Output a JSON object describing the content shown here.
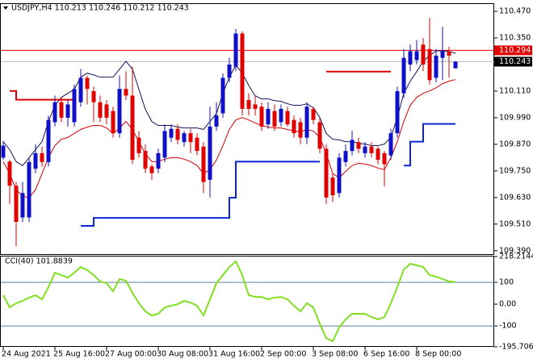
{
  "chart_data": [
    {
      "type": "candlestick",
      "title": "USDJPY,H4  110.213 110.246 110.212 110.243",
      "categories": [
        "24 Aug 2021",
        null,
        null,
        null,
        null,
        null,
        null,
        null,
        "25 Aug 16:00",
        null,
        null,
        null,
        null,
        null,
        null,
        null,
        "27 Aug 00:00",
        null,
        null,
        null,
        null,
        null,
        null,
        null,
        "30 Aug 08:00",
        null,
        null,
        null,
        null,
        null,
        null,
        null,
        "31 Aug 16:00",
        null,
        null,
        null,
        null,
        null,
        null,
        null,
        "2 Sep 00:00",
        null,
        null,
        null,
        null,
        null,
        null,
        null,
        "3 Sep 08:00",
        null,
        null,
        null,
        null,
        null,
        null,
        null,
        "6 Sep 16:00",
        null,
        null,
        null,
        null,
        null,
        null,
        null,
        "8 Sep 00:00",
        null,
        null,
        null,
        null,
        null,
        null
      ],
      "open": [
        109.81,
        109.792,
        109.683,
        109.54,
        109.54,
        109.76,
        109.83,
        109.79,
        109.97,
        110.06,
        109.99,
        109.97,
        110.06,
        110.17,
        110.11,
        110.06,
        110.05,
        110.02,
        109.92,
        110.12,
        110.09,
        109.9,
        109.84,
        109.77,
        109.76,
        109.81,
        109.9,
        109.94,
        109.88,
        109.92,
        109.9,
        109.86,
        109.71,
        109.95,
        110.01,
        110.17,
        110.22,
        110.37,
        110.07,
        110.05,
        110.04,
        109.96,
        110.02,
        109.97,
        110.02,
        109.98,
        109.97,
        109.9,
        110.03,
        109.97,
        109.85,
        109.72,
        109.65,
        109.79,
        109.84,
        109.88,
        109.83,
        109.86,
        109.85,
        109.83,
        109.82,
        109.92,
        110.1,
        110.23,
        110.25,
        110.32,
        110.3,
        110.17,
        110.26,
        110.29,
        110.213
      ],
      "high": [
        109.885,
        109.8,
        109.7,
        109.7,
        109.81,
        109.87,
        109.86,
        110.0,
        110.09,
        110.08,
        110.07,
        110.14,
        110.21,
        110.18,
        110.13,
        110.09,
        110.07,
        110.04,
        110.18,
        110.2,
        110.22,
        109.93,
        109.87,
        109.78,
        109.85,
        109.96,
        109.96,
        109.96,
        109.93,
        109.94,
        109.92,
        109.88,
        110.04,
        110.06,
        110.19,
        110.26,
        110.39,
        110.38,
        110.1,
        110.09,
        110.06,
        110.06,
        110.05,
        110.05,
        110.04,
        110.0,
        109.99,
        110.06,
        110.04,
        109.99,
        109.87,
        109.74,
        109.83,
        109.87,
        109.93,
        109.9,
        109.88,
        109.88,
        109.86,
        109.84,
        109.94,
        110.13,
        110.3,
        110.32,
        110.34,
        110.35,
        110.44,
        110.3,
        110.4,
        110.31,
        110.246
      ],
      "low": [
        109.8,
        109.6,
        109.41,
        109.52,
        109.52,
        109.74,
        109.77,
        109.77,
        109.95,
        109.97,
        109.95,
        109.95,
        110.04,
        110.05,
        109.97,
        109.97,
        109.96,
        109.9,
        109.9,
        110.07,
        109.78,
        109.81,
        109.74,
        109.71,
        109.74,
        109.79,
        109.88,
        109.87,
        109.86,
        109.83,
        109.82,
        109.65,
        109.63,
        109.93,
        109.99,
        110.15,
        110.2,
        110.0,
        110.0,
        110.0,
        109.93,
        109.94,
        109.93,
        109.95,
        109.95,
        109.9,
        109.87,
        109.87,
        109.96,
        109.83,
        109.6,
        109.61,
        109.63,
        109.77,
        109.82,
        109.83,
        109.81,
        109.81,
        109.78,
        109.68,
        109.8,
        109.9,
        110.08,
        110.2,
        110.23,
        110.2,
        110.14,
        110.15,
        110.16,
        110.17,
        110.212
      ],
      "close": [
        109.864,
        109.683,
        109.52,
        109.65,
        109.79,
        109.83,
        109.79,
        109.98,
        110.06,
        109.99,
        110.05,
        110.12,
        110.17,
        110.12,
        110.06,
        109.99,
        109.99,
        109.92,
        110.12,
        110.09,
        109.8,
        109.83,
        109.76,
        109.74,
        109.83,
        109.93,
        109.94,
        109.89,
        109.92,
        109.88,
        109.84,
        109.7,
        109.95,
        110.0,
        110.17,
        110.23,
        110.37,
        110.03,
        110.03,
        110.03,
        109.95,
        110.03,
        109.95,
        110.03,
        109.96,
        109.92,
        109.9,
        110.04,
        109.98,
        109.85,
        109.63,
        109.64,
        109.81,
        109.84,
        109.89,
        109.85,
        109.86,
        109.83,
        109.8,
        109.78,
        109.92,
        110.11,
        110.26,
        110.29,
        110.29,
        110.23,
        110.16,
        110.27,
        110.29,
        110.27,
        110.243
      ],
      "up_color": "#1010c8",
      "down_color": "#e00000",
      "series": [
        {
          "color": "#14145a",
          "width": 1,
          "step": false,
          "values": [
            109.882,
            109.846,
            109.792,
            109.774,
            109.81,
            109.846,
            109.882,
            109.973,
            110.046,
            110.082,
            110.1,
            110.118,
            110.173,
            110.191,
            110.183,
            110.173,
            110.173,
            110.173,
            110.209,
            110.245,
            110.209,
            110.118,
            110.028,
            109.973,
            109.955,
            109.955,
            109.955,
            109.948,
            109.944,
            109.944,
            109.944,
            109.937,
            109.973,
            110.009,
            110.1,
            110.173,
            110.227,
            110.191,
            110.136,
            110.089,
            110.075,
            110.075,
            110.067,
            110.064,
            110.053,
            110.046,
            110.046,
            110.053,
            110.035,
            109.991,
            109.919,
            109.893,
            109.89,
            109.882,
            109.882,
            109.875,
            109.871,
            109.864,
            109.864,
            109.871,
            109.901,
            109.991,
            110.1,
            110.155,
            110.198,
            110.245,
            110.27,
            110.292,
            110.292,
            110.289,
            110.281
          ]
        },
        {
          "color": "#d40000",
          "width": 1,
          "step": false,
          "values": [
            109.792,
            109.738,
            109.665,
            109.636,
            109.629,
            109.665,
            109.738,
            109.81,
            109.864,
            109.893,
            109.901,
            109.919,
            109.937,
            109.948,
            109.955,
            109.955,
            109.944,
            109.919,
            109.944,
            109.973,
            109.937,
            109.882,
            109.828,
            109.792,
            109.792,
            109.803,
            109.81,
            109.81,
            109.803,
            109.792,
            109.774,
            109.738,
            109.756,
            109.799,
            109.864,
            109.937,
            109.98,
            109.991,
            109.98,
            109.966,
            109.955,
            109.948,
            109.944,
            109.944,
            109.937,
            109.93,
            109.926,
            109.937,
            109.93,
            109.901,
            109.828,
            109.738,
            109.719,
            109.748,
            109.774,
            109.785,
            109.781,
            109.774,
            109.763,
            109.756,
            109.81,
            109.882,
            109.973,
            110.046,
            110.082,
            110.1,
            110.111,
            110.125,
            110.144,
            110.155,
            110.162
          ]
        },
        {
          "color": "#0a24d6",
          "width": 2,
          "step": true,
          "values": [
            null,
            null,
            null,
            null,
            null,
            null,
            null,
            null,
            null,
            null,
            null,
            null,
            109.502,
            109.502,
            109.538,
            109.538,
            109.538,
            109.538,
            109.538,
            109.538,
            109.538,
            109.538,
            109.538,
            109.538,
            109.538,
            109.538,
            109.538,
            109.538,
            109.538,
            109.538,
            109.538,
            109.538,
            109.538,
            109.538,
            109.538,
            109.629,
            109.792,
            109.792,
            109.792,
            109.792,
            109.792,
            109.792,
            109.792,
            109.792,
            109.792,
            109.792,
            109.792,
            109.792,
            109.792,
            109.792,
            null,
            null,
            null,
            null,
            null,
            null,
            null,
            null,
            null,
            null,
            null,
            null,
            109.774,
            109.882,
            109.882,
            109.962,
            109.962,
            109.962,
            109.962,
            109.962,
            109.962
          ]
        },
        {
          "color": "#e00000",
          "width": 2,
          "step": true,
          "values": [
            null,
            110.111,
            110.071,
            110.071,
            110.071,
            110.071,
            110.071,
            110.071,
            110.071,
            110.071,
            110.071,
            110.071,
            null,
            null,
            null,
            null,
            null,
            null,
            null,
            null,
            null,
            null,
            null,
            null,
            null,
            null,
            null,
            null,
            null,
            null,
            null,
            null,
            null,
            null,
            null,
            null,
            null,
            null,
            null,
            null,
            null,
            null,
            null,
            null,
            null,
            null,
            null,
            null,
            null,
            null,
            110.198,
            110.198,
            110.198,
            110.198,
            110.198,
            110.198,
            110.198,
            110.198,
            110.198,
            110.198,
            110.198,
            null,
            null,
            null,
            null,
            null,
            null,
            null,
            null,
            null,
            null
          ]
        }
      ],
      "price_lines": [
        {
          "value": 110.294,
          "color": "#e00000",
          "label_bg": "#e00000"
        },
        {
          "value": 110.243,
          "color": "#b8b8b8",
          "label_bg": "#000000"
        }
      ],
      "ylim": [
        109.371,
        110.503
      ],
      "yticks": [
        {
          "value": 110.47,
          "label": "110.470"
        },
        {
          "value": 110.35,
          "label": "110.350"
        },
        {
          "value": 110.23,
          "label": "110.230"
        },
        {
          "value": 110.11,
          "label": "110.110"
        },
        {
          "value": 109.99,
          "label": "109.990"
        },
        {
          "value": 109.87,
          "label": "109.870"
        },
        {
          "value": 109.75,
          "label": "109.750"
        },
        {
          "value": 109.63,
          "label": "109.630"
        },
        {
          "value": 109.51,
          "label": "109.510"
        },
        {
          "value": 109.39,
          "label": "109.390"
        }
      ]
    },
    {
      "type": "line",
      "title": "CCI(40) 101.8839",
      "series": [
        {
          "color": "#80e020",
          "width": 2,
          "values": [
            41,
            -15,
            4,
            15,
            30,
            41,
            22,
            78,
            144,
            133,
            122,
            144,
            170,
            156,
            133,
            104,
            96,
            59,
            115,
            107,
            52,
            4,
            -33,
            -52,
            -44,
            -15,
            -7,
            0,
            15,
            7,
            -7,
            -52,
            22,
            96,
            133,
            170,
            196,
            133,
            41,
            33,
            33,
            22,
            30,
            33,
            22,
            -7,
            -33,
            4,
            -15,
            -89,
            -156,
            -170,
            -107,
            -70,
            -44,
            -44,
            -44,
            -59,
            -70,
            -59,
            4,
            78,
            159,
            185,
            178,
            170,
            133,
            126,
            115,
            104,
            101.8839
          ]
        }
      ],
      "levels": [
        100,
        -100
      ],
      "level_color": "#5a7fa0",
      "ylim": [
        -195.7063,
        218.2144
      ],
      "yticks": [
        218.2144,
        100,
        {
          "value": 0,
          "label": "0.00"
        },
        -100,
        -195.7063
      ]
    }
  ]
}
